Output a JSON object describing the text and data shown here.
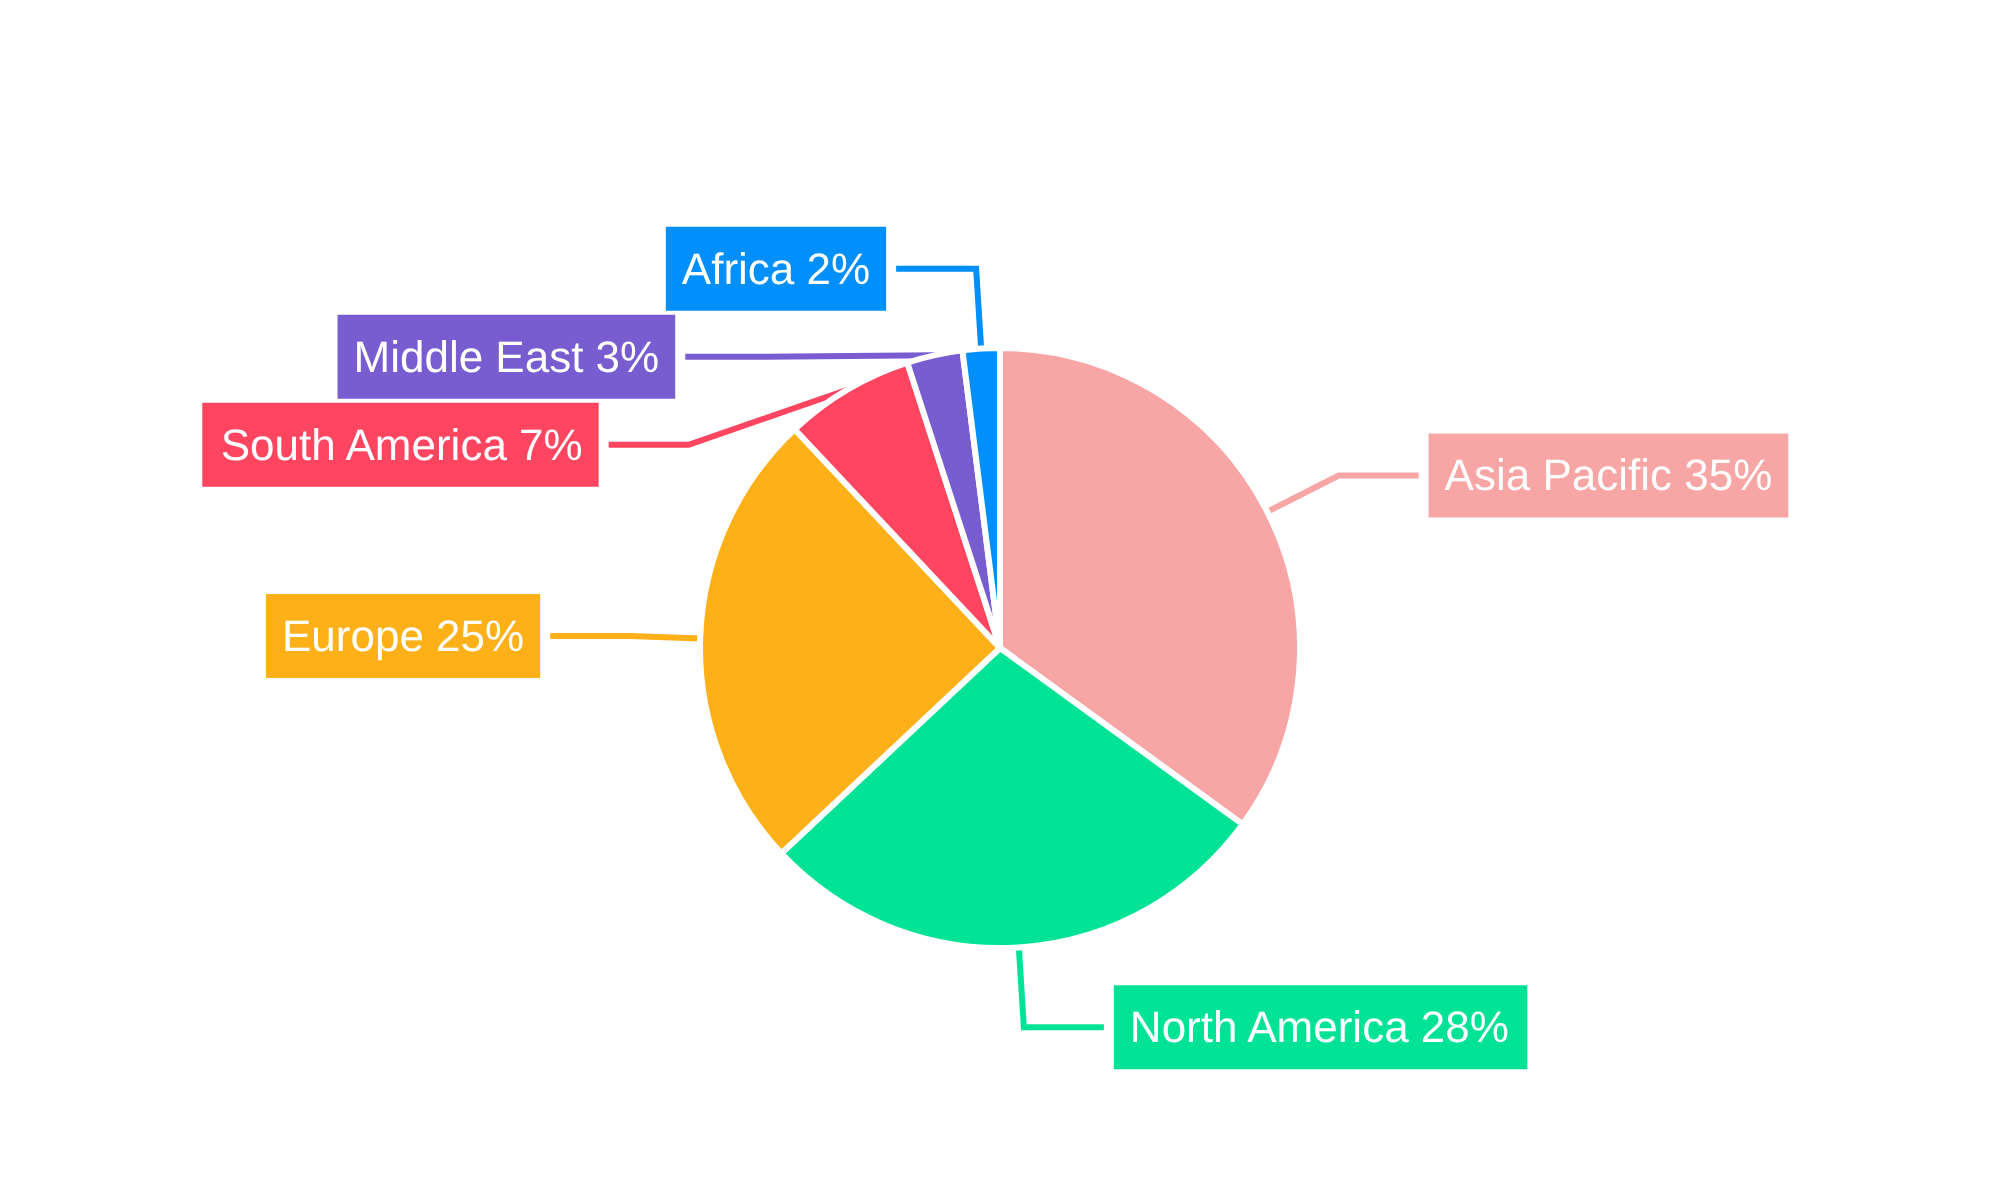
{
  "chart_data": {
    "type": "pie",
    "categories": [
      "Asia Pacific",
      "North America",
      "Europe",
      "South America",
      "Middle East",
      "Africa"
    ],
    "values": [
      35,
      28,
      25,
      7,
      3,
      2
    ],
    "value_labels": [
      "35%",
      "28%",
      "25%",
      "7%",
      "3%",
      "2%"
    ],
    "colors": [
      "#f8a5a5",
      "#00e396",
      "#feb019",
      "#ff4560",
      "#775dd0",
      "#008ffb"
    ],
    "legend": false
  }
}
